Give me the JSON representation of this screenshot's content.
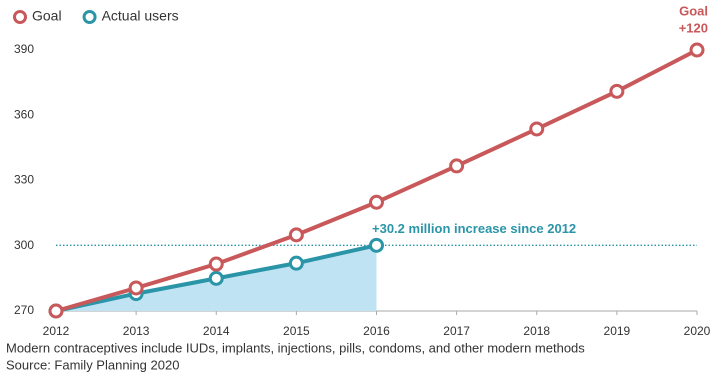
{
  "chart_data": {
    "type": "line",
    "x": [
      2012,
      2013,
      2014,
      2015,
      2016,
      2017,
      2018,
      2019,
      2020
    ],
    "series": [
      {
        "name": "Goal",
        "color": "#c8585a",
        "values": [
          270,
          280.6,
          291.6,
          305,
          320,
          336.7,
          353.7,
          371,
          390
        ]
      },
      {
        "name": "Actual users",
        "color": "#2b95a8",
        "values": [
          270,
          278,
          285,
          292,
          300.2,
          null,
          null,
          null,
          null
        ],
        "area_color": "#bfe3f3"
      }
    ],
    "xlim": [
      2012,
      2020
    ],
    "xticks": [
      2012,
      2013,
      2014,
      2015,
      2016,
      2017,
      2018,
      2019,
      2020
    ],
    "ylim": [
      270,
      400
    ],
    "yticks": [
      270,
      300,
      330,
      360,
      390
    ],
    "reference_line": {
      "value": 300.2,
      "label": "+30.2 million increase since 2012"
    },
    "end_label": [
      "Goal",
      "+120"
    ],
    "legend": "top-left",
    "notes": [
      "Modern contraceptives include IUDs, implants, injections, pills, condoms, and other modern methods",
      "Source: Family Planning 2020"
    ]
  }
}
